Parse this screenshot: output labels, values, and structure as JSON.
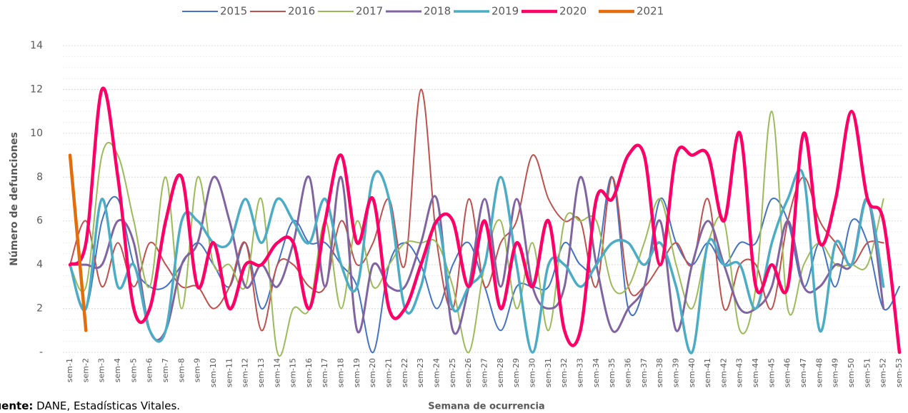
{
  "chart_data": {
    "type": "line",
    "y_label": "Número de defunciones",
    "x_label": "Semana de ocurrencia",
    "source_label": "Fuente:",
    "source": "DANE, Estadísticas Vitales.",
    "categories": [
      "sem-1",
      "sem-2",
      "sem-3",
      "sem-4",
      "sem-5",
      "sem-6",
      "sem-7",
      "sem-8",
      "sem-9",
      "sem-10",
      "sem-11",
      "sem-12",
      "sem-13",
      "sem-14",
      "sem-15",
      "sem-16",
      "sem-17",
      "sem-18",
      "sem-19",
      "sem-20",
      "sem-21",
      "sem-22",
      "sem-23",
      "sem-24",
      "sem-25",
      "sem-26",
      "sem-27",
      "sem-28",
      "sem-29",
      "sem-30",
      "sem-31",
      "sem-32",
      "sem-33",
      "sem-34",
      "sem-35",
      "sem-36",
      "sem-37",
      "sem-38",
      "sem-39",
      "sem-40",
      "sem-41",
      "sem-42",
      "sem-43",
      "sem-44",
      "sem-45",
      "sem-46",
      "sem-47",
      "sem-48",
      "sem-49",
      "sem-50",
      "sem-51",
      "sem-52",
      "sem-53"
    ],
    "ylim": [
      0,
      14
    ],
    "yticks": [
      {
        "value": 0,
        "label": "-"
      },
      2,
      4,
      6,
      8,
      10,
      12,
      14
    ],
    "grid": true,
    "legend": "top",
    "smooth": true,
    "series": [
      {
        "name": "2015",
        "color": "#4472c4",
        "values": [
          4,
          2,
          6,
          7,
          4,
          3,
          3,
          4,
          5,
          4,
          3,
          5,
          2,
          4,
          6,
          5,
          5,
          4,
          3,
          0,
          4,
          5,
          4,
          2,
          4,
          5,
          3,
          1,
          3,
          3,
          3,
          5,
          4,
          4,
          8,
          2,
          3,
          7,
          5,
          4,
          5,
          4,
          5,
          5,
          7,
          6,
          3,
          5,
          3,
          6,
          5,
          2,
          3
        ]
      },
      {
        "name": "2016",
        "color": "#c0504d",
        "values": [
          4,
          6,
          3,
          5,
          3,
          5,
          4,
          3,
          3,
          2,
          3,
          5,
          1,
          4,
          4,
          3,
          3,
          6,
          4,
          5,
          7,
          4,
          12,
          5,
          2,
          7,
          3,
          5,
          6,
          9,
          7,
          6,
          6,
          3,
          8,
          3,
          3,
          4,
          5,
          4,
          7,
          2,
          4,
          4,
          2,
          6,
          8,
          6,
          5,
          4,
          5,
          5,
          null
        ]
      },
      {
        "name": "2017",
        "color": "#9bbb59",
        "values": [
          4,
          3,
          9,
          9,
          6,
          3,
          8,
          2,
          8,
          4,
          4,
          3,
          7,
          0,
          2,
          2,
          6,
          2,
          6,
          3,
          4,
          5,
          5,
          5,
          3,
          0,
          4,
          6,
          2,
          5,
          1,
          6,
          6,
          6,
          3,
          3,
          5,
          7,
          4,
          2,
          5,
          6,
          1,
          3,
          11,
          2,
          4,
          5,
          4,
          4,
          4,
          7,
          null
        ]
      },
      {
        "name": "2018",
        "color": "#8064a2",
        "values": [
          4,
          4,
          4,
          6,
          5,
          1,
          1,
          4,
          5,
          8,
          6,
          3,
          4,
          3,
          5,
          8,
          3,
          8,
          1,
          4,
          3,
          3,
          5,
          7,
          1,
          3,
          7,
          3,
          7,
          3,
          2,
          3,
          8,
          4,
          1,
          2,
          3,
          6,
          1,
          4,
          6,
          4,
          2,
          2,
          3,
          6,
          3,
          3,
          4,
          4,
          7,
          2,
          null
        ]
      },
      {
        "name": "2019",
        "color": "#4bacc6",
        "values": [
          4,
          2,
          7,
          3,
          4,
          1,
          1,
          6,
          6,
          5,
          5,
          7,
          5,
          7,
          6,
          5,
          7,
          4,
          3,
          8,
          7,
          2,
          3,
          6,
          2,
          3,
          4,
          8,
          4,
          0,
          4,
          4,
          3,
          4,
          5,
          5,
          4,
          5,
          3,
          0,
          5,
          4,
          4,
          2,
          5,
          7,
          8,
          1,
          5,
          4,
          7,
          3,
          null
        ]
      },
      {
        "name": "2020",
        "color": "#ff0066",
        "values": [
          4,
          5,
          12,
          8,
          2,
          2,
          6,
          8,
          3,
          5,
          2,
          4,
          4,
          5,
          5,
          2,
          6,
          9,
          5,
          7,
          2,
          2,
          4,
          6,
          6,
          3,
          6,
          2,
          5,
          3,
          6,
          1,
          1,
          7,
          7,
          9,
          9,
          4,
          9,
          9,
          9,
          6,
          10,
          3,
          4,
          3,
          10,
          5,
          7,
          11,
          7,
          6,
          0
        ]
      },
      {
        "name": "2021",
        "color": "#e46c0a",
        "values": [
          9,
          1,
          null,
          null,
          null,
          null,
          null,
          null,
          null,
          null,
          null,
          null,
          null,
          null,
          null,
          null,
          null,
          null,
          null,
          null,
          null,
          null,
          null,
          null,
          null,
          null,
          null,
          null,
          null,
          null,
          null,
          null,
          null,
          null,
          null,
          null,
          null,
          null,
          null,
          null,
          null,
          null,
          null,
          null,
          null,
          null,
          null,
          null,
          null,
          null,
          null,
          null,
          null
        ]
      }
    ]
  }
}
